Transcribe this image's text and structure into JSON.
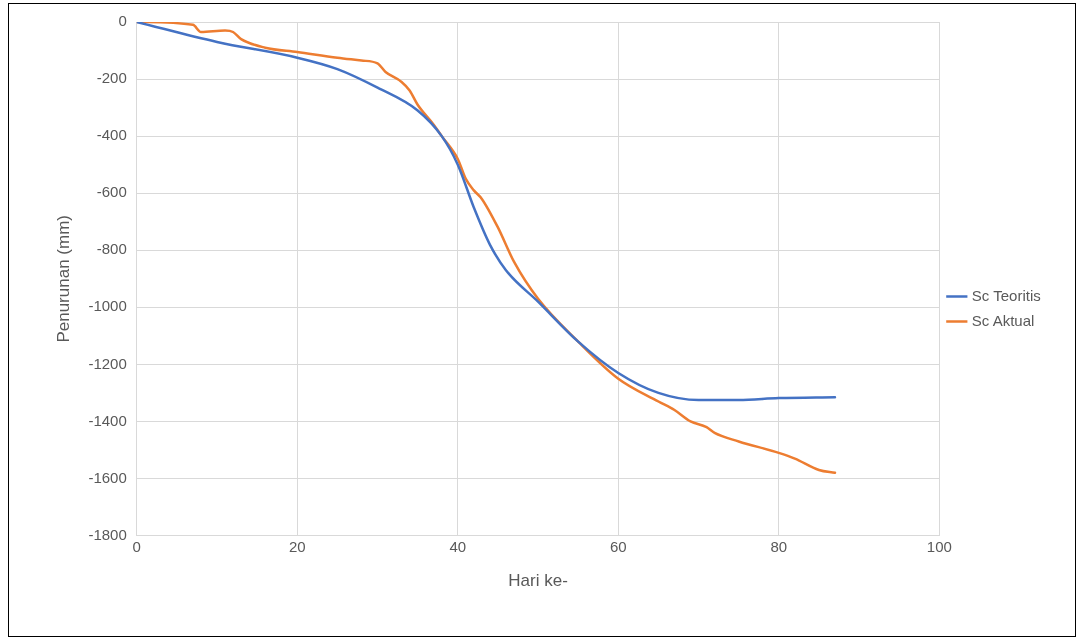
{
  "chart_data": {
    "type": "line",
    "xlabel": "Hari ke-",
    "ylabel": "Penurunan (mm)",
    "xlim": [
      0,
      100
    ],
    "xticks": [
      0,
      20,
      40,
      60,
      80,
      100
    ],
    "ylim": [
      -1800,
      0
    ],
    "yticks": [
      -1800,
      -1600,
      -1400,
      -1200,
      -1000,
      -800,
      -600,
      -400,
      -200,
      0
    ],
    "grid": true,
    "legend": "right",
    "marker": "none",
    "line_style": "solid",
    "series": [
      {
        "name": "Sc Teoritis",
        "color": "#4472c4",
        "x": [
          0,
          10,
          20,
          25,
          30,
          35,
          38,
          40,
          42,
          44,
          46,
          50,
          55,
          60,
          65,
          70,
          75,
          80,
          87
        ],
        "values": [
          0,
          -70,
          -125,
          -165,
          -230,
          -310,
          -400,
          -500,
          -650,
          -780,
          -870,
          -980,
          -1120,
          -1230,
          -1300,
          -1325,
          -1325,
          -1318,
          -1315
        ]
      },
      {
        "name": "Sc Aktual",
        "color": "#ed7d31",
        "x": [
          0,
          7,
          8,
          11,
          12,
          13,
          16,
          20,
          25,
          28,
          30,
          31,
          33,
          34,
          35,
          37,
          38,
          40,
          41,
          42,
          43,
          45,
          47,
          50,
          55,
          60,
          65,
          67,
          69,
          71,
          72,
          75,
          80,
          82,
          85,
          87
        ],
        "values": [
          0,
          -10,
          -35,
          -30,
          -35,
          -60,
          -90,
          -105,
          -125,
          -135,
          -145,
          -175,
          -210,
          -240,
          -290,
          -360,
          -400,
          -480,
          -550,
          -590,
          -620,
          -720,
          -840,
          -970,
          -1120,
          -1250,
          -1330,
          -1360,
          -1400,
          -1420,
          -1440,
          -1470,
          -1510,
          -1530,
          -1570,
          -1580
        ]
      }
    ]
  }
}
